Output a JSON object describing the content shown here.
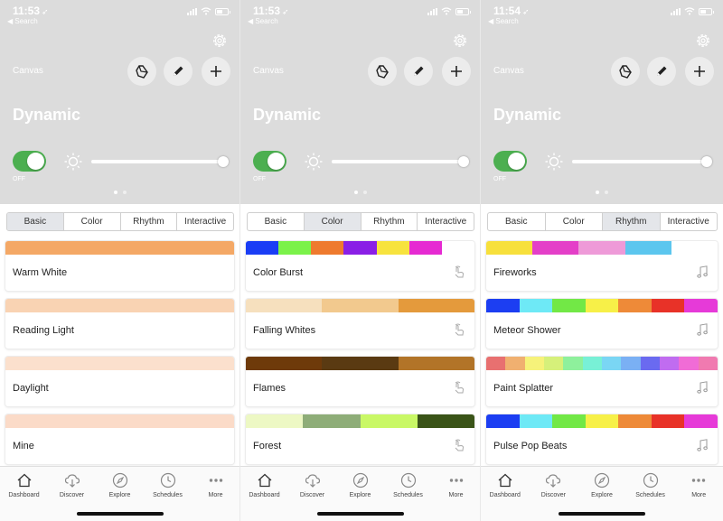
{
  "colors": {
    "hero_bg": "#dcdcdc",
    "toggle_on": "#4caf50",
    "tab_active_bg": "#e4e6ea"
  },
  "screens": [
    {
      "status": {
        "time": "11:53",
        "back_label": "◀ Search"
      },
      "header": {
        "canvas_label": "Canvas",
        "title": "Dynamic"
      },
      "power": {
        "toggle_on": true,
        "toggle_label": "OFF",
        "brightness": 1.0
      },
      "pager": {
        "pages": 2,
        "current": 1
      },
      "tabs": [
        {
          "label": "Basic",
          "active": true
        },
        {
          "label": "Color",
          "active": false
        },
        {
          "label": "Rhythm",
          "active": false
        },
        {
          "label": "Interactive",
          "active": false
        }
      ],
      "scenes": [
        {
          "name": "Warm White",
          "colors": [
            "#f4a866"
          ],
          "icon": ""
        },
        {
          "name": "Reading Light",
          "colors": [
            "#f9d3b3"
          ],
          "icon": ""
        },
        {
          "name": "Daylight",
          "colors": [
            "#fbe0cd"
          ],
          "icon": ""
        },
        {
          "name": "Mine",
          "colors": [
            "#fbdbc8"
          ],
          "icon": ""
        }
      ],
      "nav": [
        {
          "label": "Dashboard",
          "icon": "home-icon"
        },
        {
          "label": "Discover",
          "icon": "cloud-download-icon"
        },
        {
          "label": "Explore",
          "icon": "compass-icon"
        },
        {
          "label": "Schedules",
          "icon": "clock-icon"
        },
        {
          "label": "More",
          "icon": "more-icon"
        }
      ]
    },
    {
      "status": {
        "time": "11:53",
        "back_label": "◀ Search"
      },
      "header": {
        "canvas_label": "Canvas",
        "title": "Dynamic"
      },
      "power": {
        "toggle_on": true,
        "toggle_label": "OFF",
        "brightness": 1.0
      },
      "pager": {
        "pages": 2,
        "current": 1
      },
      "tabs": [
        {
          "label": "Basic",
          "active": false
        },
        {
          "label": "Color",
          "active": true
        },
        {
          "label": "Rhythm",
          "active": false
        },
        {
          "label": "Interactive",
          "active": false
        }
      ],
      "scenes": [
        {
          "name": "Color Burst",
          "colors": [
            "#1a3df5",
            "#7bf24a",
            "#ee7a2e",
            "#8a1fe6",
            "#f7e33e",
            "#e62ad2",
            "#ffffff"
          ],
          "icon": "touch-icon"
        },
        {
          "name": "Falling Whites",
          "colors": [
            "#f6e0be",
            "#f2c98e",
            "#e49a3c"
          ],
          "icon": "touch-icon"
        },
        {
          "name": "Flames",
          "colors": [
            "#6e3a0a",
            "#5a3a12",
            "#b27428"
          ],
          "icon": "touch-icon"
        },
        {
          "name": "Forest",
          "colors": [
            "#edf8c4",
            "#8ead78",
            "#c9f866",
            "#3a5418"
          ],
          "icon": "touch-icon"
        }
      ],
      "nav": [
        {
          "label": "Dashboard",
          "icon": "home-icon"
        },
        {
          "label": "Discover",
          "icon": "cloud-download-icon"
        },
        {
          "label": "Explore",
          "icon": "compass-icon"
        },
        {
          "label": "Schedules",
          "icon": "clock-icon"
        },
        {
          "label": "More",
          "icon": "more-icon"
        }
      ]
    },
    {
      "status": {
        "time": "11:54",
        "back_label": "◀ Search"
      },
      "header": {
        "canvas_label": "Canvas",
        "title": "Dynamic"
      },
      "power": {
        "toggle_on": true,
        "toggle_label": "OFF",
        "brightness": 1.0
      },
      "pager": {
        "pages": 2,
        "current": 1
      },
      "tabs": [
        {
          "label": "Basic",
          "active": false
        },
        {
          "label": "Color",
          "active": false
        },
        {
          "label": "Rhythm",
          "active": true
        },
        {
          "label": "Interactive",
          "active": false
        }
      ],
      "scenes": [
        {
          "name": "Fireworks",
          "colors": [
            "#f7e03c",
            "#e43fc8",
            "#ee9ad8",
            "#5cc6ee",
            "#ffffff"
          ],
          "icon": "music-icon"
        },
        {
          "name": "Meteor Shower",
          "colors": [
            "#1c3ef2",
            "#6ee9f6",
            "#72e846",
            "#f7f048",
            "#ee8a38",
            "#e83228",
            "#e63ad8"
          ],
          "icon": "music-icon"
        },
        {
          "name": "Paint Splatter",
          "colors": [
            "#e87070",
            "#f0b070",
            "#f6f27a",
            "#d6f07a",
            "#8ef09c",
            "#78f0d6",
            "#7ad6f4",
            "#7ab0f4",
            "#6a6af0",
            "#c06cf0",
            "#f06cd6",
            "#f07ab0"
          ],
          "icon": "music-icon"
        },
        {
          "name": "Pulse Pop Beats",
          "colors": [
            "#1c3ef2",
            "#6ee9f6",
            "#72e846",
            "#f7f048",
            "#ee8a38",
            "#e83228",
            "#e63ad8"
          ],
          "icon": "music-icon"
        }
      ],
      "nav": [
        {
          "label": "Dashboard",
          "icon": "home-icon"
        },
        {
          "label": "Discover",
          "icon": "cloud-download-icon"
        },
        {
          "label": "Explore",
          "icon": "compass-icon"
        },
        {
          "label": "Schedules",
          "icon": "clock-icon"
        },
        {
          "label": "More",
          "icon": "more-icon"
        }
      ]
    }
  ]
}
